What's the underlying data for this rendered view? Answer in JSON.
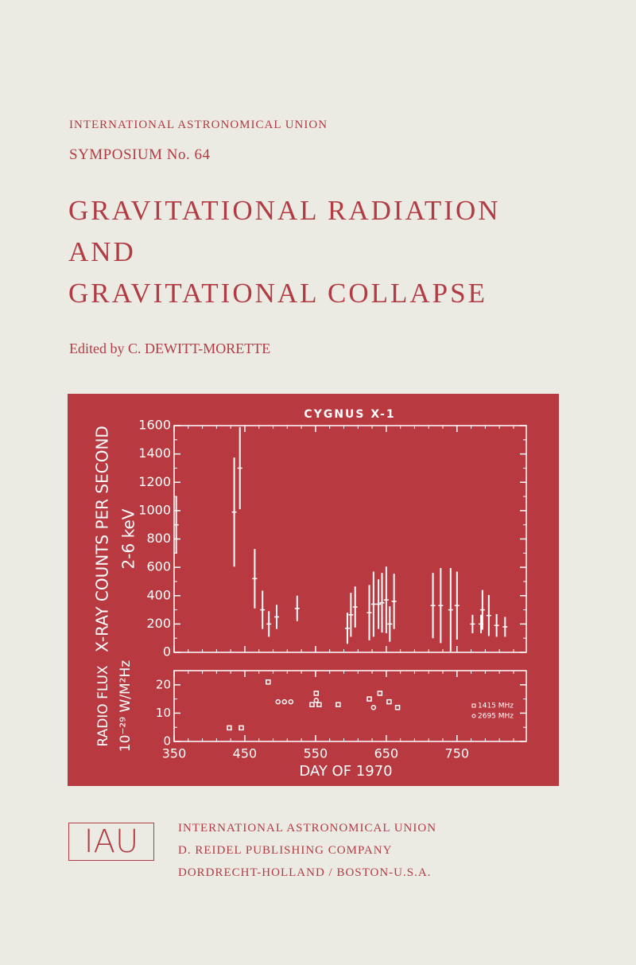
{
  "header": {
    "organization": "INTERNATIONAL ASTRONOMICAL UNION",
    "symposium": "SYMPOSIUM No. 64"
  },
  "title_lines": [
    "GRAVITATIONAL RADIATION",
    "AND",
    "GRAVITATIONAL COLLAPSE"
  ],
  "editor": "Edited by C. DEWITT-MORETTE",
  "chart_data": {
    "type": "errorbar",
    "title": "CYGNUS X-1",
    "xlabel": "DAY OF 1970",
    "xlim": [
      350,
      848
    ],
    "xticks": [
      350,
      450,
      550,
      650,
      750
    ],
    "color": "#ffffff",
    "background": "#b83a40",
    "panels": [
      {
        "ylabel": [
          "X-RAY COUNTS PER SECOND",
          "2-6 keV"
        ],
        "ylim": [
          0,
          1600
        ],
        "yticks": [
          0,
          200,
          400,
          600,
          800,
          1000,
          1200,
          1400,
          1600
        ],
        "series": [
          {
            "x": [
              353,
              435,
              443,
              464,
              475,
              484,
              495,
              524,
              595,
              600,
              606,
              626,
              632,
              639,
              644,
              650,
              655,
              661,
              716,
              727,
              741,
              750,
              772,
              784,
              786,
              795,
              806,
              818
            ],
            "values": [
              900,
              990,
              1300,
              520,
              300,
              200,
              250,
              310,
              170,
              265,
              320,
              280,
              340,
              340,
              350,
              370,
              200,
              360,
              330,
              330,
              300,
              330,
              200,
              200,
              300,
              260,
              190,
              180
            ],
            "errors": [
              200,
              385,
              290,
              210,
              135,
              90,
              85,
              90,
              110,
              155,
              145,
              195,
              230,
              175,
              210,
              235,
              125,
              195,
              230,
              265,
              295,
              240,
              65,
              65,
              140,
              145,
              80,
              70
            ]
          }
        ]
      },
      {
        "ylabel": [
          "RADIO FLUX",
          "10⁻²⁹ W/M²Hz"
        ],
        "ylim": [
          0,
          25
        ],
        "yticks": [
          0,
          10,
          20
        ],
        "legend": "right",
        "series": [
          {
            "name": "1415 MHz",
            "marker": "square",
            "x": [
              428,
              445,
              483,
              545,
              551,
              555,
              582,
              626,
              641,
              654,
              666
            ],
            "values": [
              4.8,
              4.8,
              21,
              13,
              17,
              13,
              13,
              15,
              17,
              14,
              12
            ]
          },
          {
            "name": "2695 MHz",
            "marker": "circle",
            "x": [
              497,
              506,
              515,
              551,
              632
            ],
            "values": [
              14,
              14,
              14,
              14.5,
              12
            ]
          }
        ]
      }
    ]
  },
  "logo": "IAU",
  "publisher_lines": [
    "INTERNATIONAL ASTRONOMICAL UNION",
    "D. REIDEL PUBLISHING COMPANY",
    "DORDRECHT-HOLLAND / BOSTON-U.S.A."
  ]
}
